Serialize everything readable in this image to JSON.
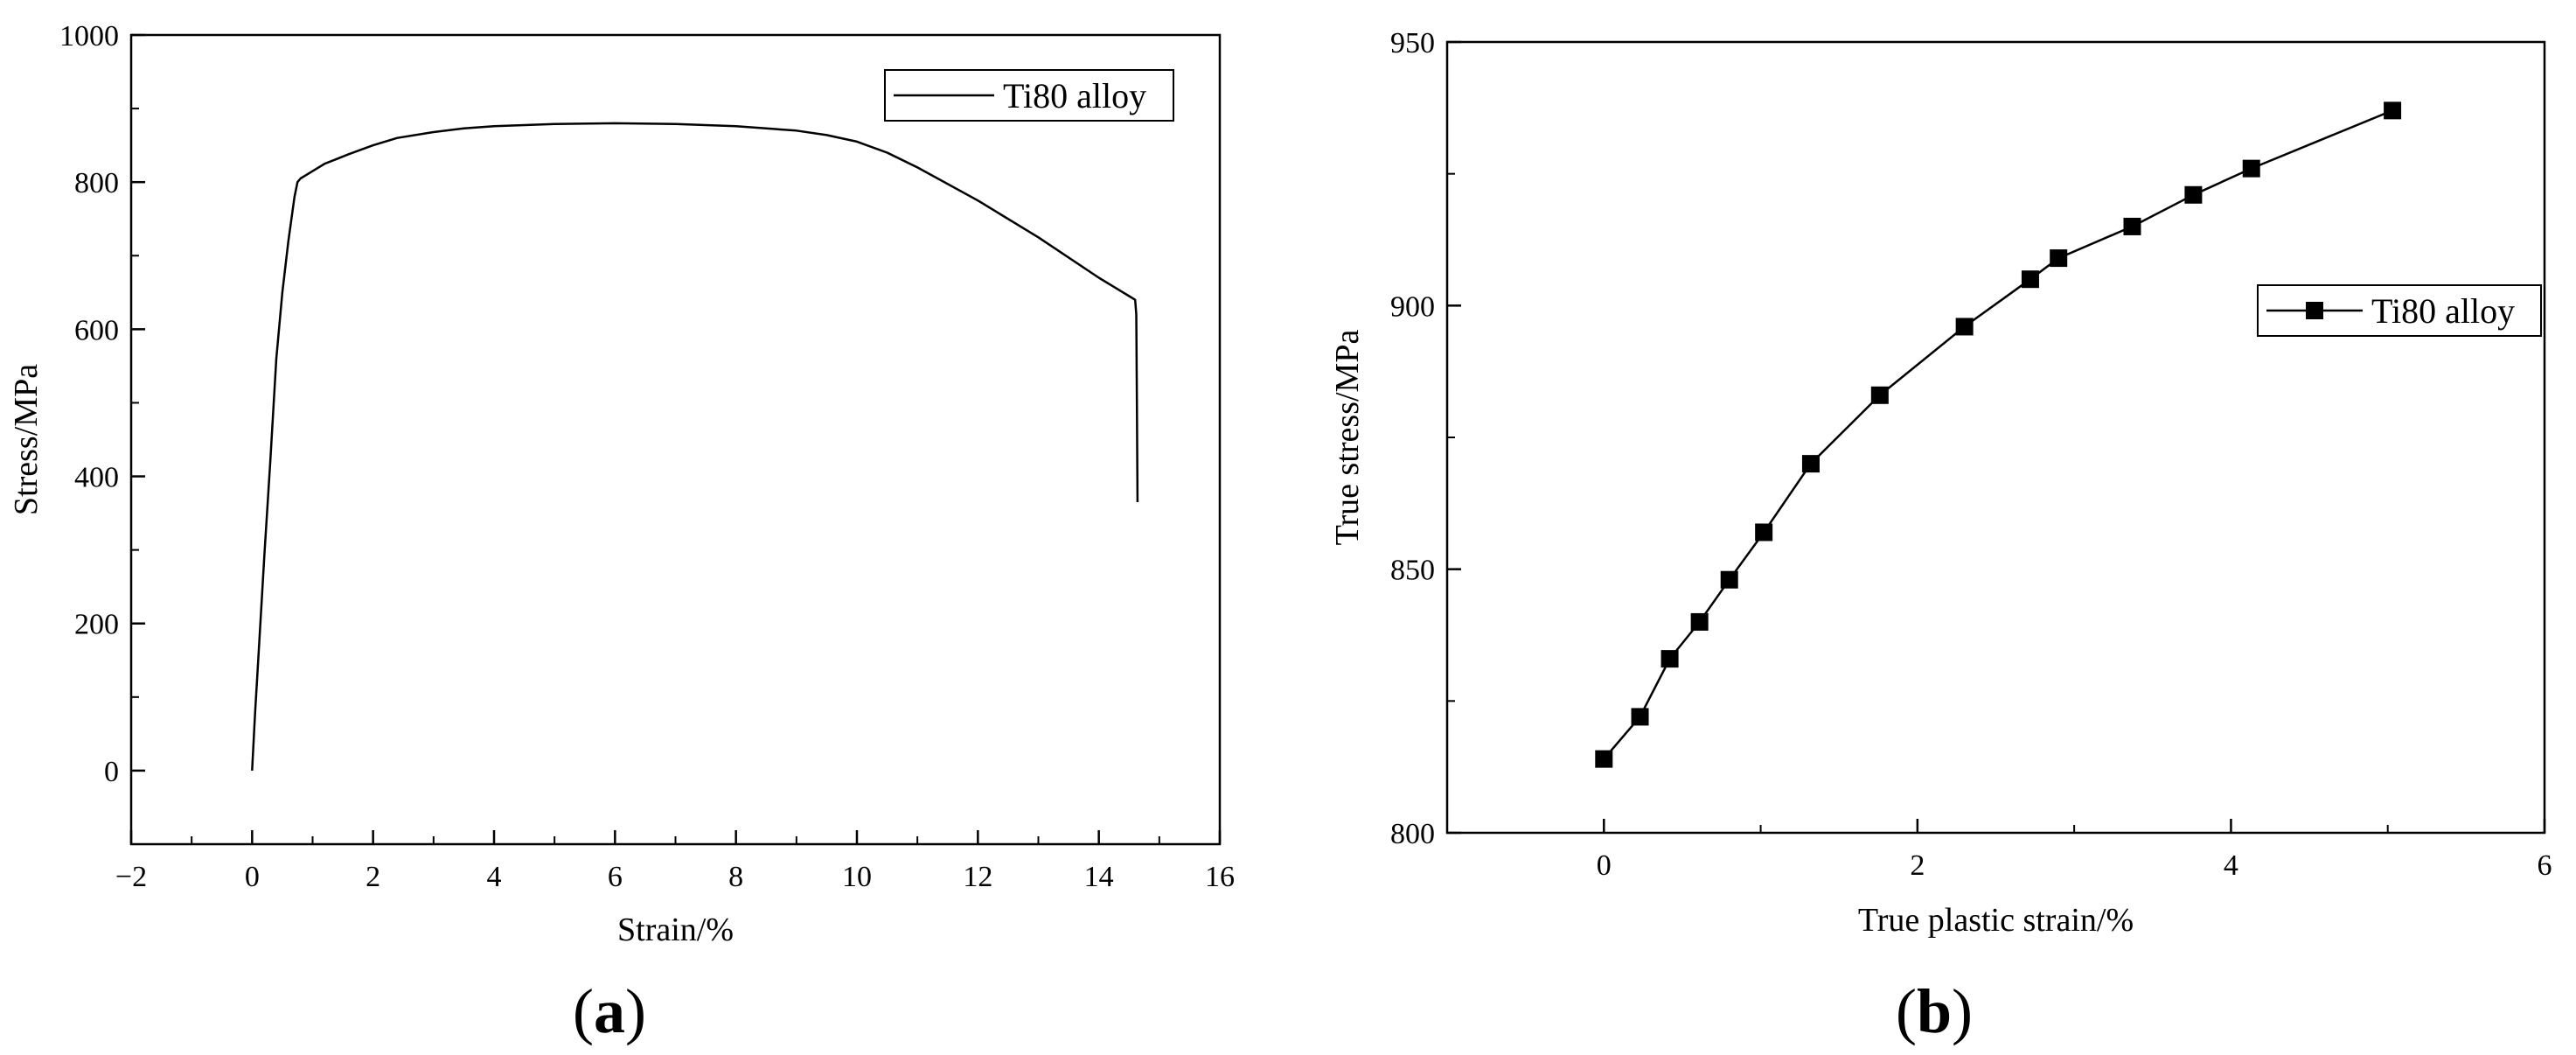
{
  "chart_data": [
    {
      "type": "line",
      "panel_label": "a",
      "xlabel": "Strain/%",
      "ylabel": "Stress/MPa",
      "xlim": [
        -2,
        16
      ],
      "ylim": [
        -100,
        1000
      ],
      "xticks": [
        -2,
        0,
        2,
        4,
        6,
        8,
        10,
        12,
        14,
        16
      ],
      "yticks": [
        0,
        200,
        400,
        600,
        800,
        1000
      ],
      "xtick_labels": [
        "−2",
        "0",
        "2",
        "4",
        "6",
        "8",
        "10",
        "12",
        "14",
        "16"
      ],
      "ytick_labels": [
        "0",
        "200",
        "400",
        "600",
        "800",
        "1000"
      ],
      "legend_position": "top-right",
      "series": [
        {
          "name": "Ti80 alloy",
          "marker": "none",
          "x": [
            0,
            0.05,
            0.1,
            0.2,
            0.3,
            0.4,
            0.5,
            0.6,
            0.7,
            0.75,
            0.8,
            0.9,
            1.2,
            1.6,
            2.0,
            2.4,
            3.0,
            3.5,
            4.0,
            5.0,
            6.0,
            7.0,
            8.0,
            9.0,
            9.5,
            10.0,
            10.5,
            11.0,
            12.0,
            13.0,
            14.0,
            14.3,
            14.5,
            14.6,
            14.62,
            14.63,
            14.64
          ],
          "y": [
            0,
            80,
            150,
            290,
            420,
            560,
            650,
            720,
            780,
            800,
            805,
            810,
            825,
            838,
            850,
            860,
            868,
            873,
            876,
            879,
            880,
            879,
            876,
            870,
            864,
            855,
            840,
            820,
            775,
            725,
            670,
            655,
            645,
            640,
            620,
            500,
            365
          ]
        }
      ]
    },
    {
      "type": "line",
      "panel_label": "b",
      "xlabel": "True plastic strain/%",
      "ylabel": "True stress/MPa",
      "xlim": [
        -1,
        6
      ],
      "ylim": [
        800,
        950
      ],
      "xticks": [
        0,
        2,
        4,
        6
      ],
      "yticks": [
        800,
        850,
        900,
        950
      ],
      "xtick_labels": [
        "0",
        "2",
        "4",
        "6"
      ],
      "ytick_labels": [
        "800",
        "850",
        "900",
        "950"
      ],
      "legend_position": "right",
      "series": [
        {
          "name": "Ti80 alloy",
          "marker": "square",
          "x": [
            0,
            0.23,
            0.42,
            0.61,
            0.8,
            1.02,
            1.32,
            1.76,
            2.3,
            2.72,
            2.9,
            3.37,
            3.76,
            4.13,
            5.03
          ],
          "y": [
            814,
            822,
            833,
            840,
            848,
            857,
            870,
            883,
            896,
            905,
            909,
            915,
            921,
            926,
            937
          ]
        }
      ]
    }
  ]
}
